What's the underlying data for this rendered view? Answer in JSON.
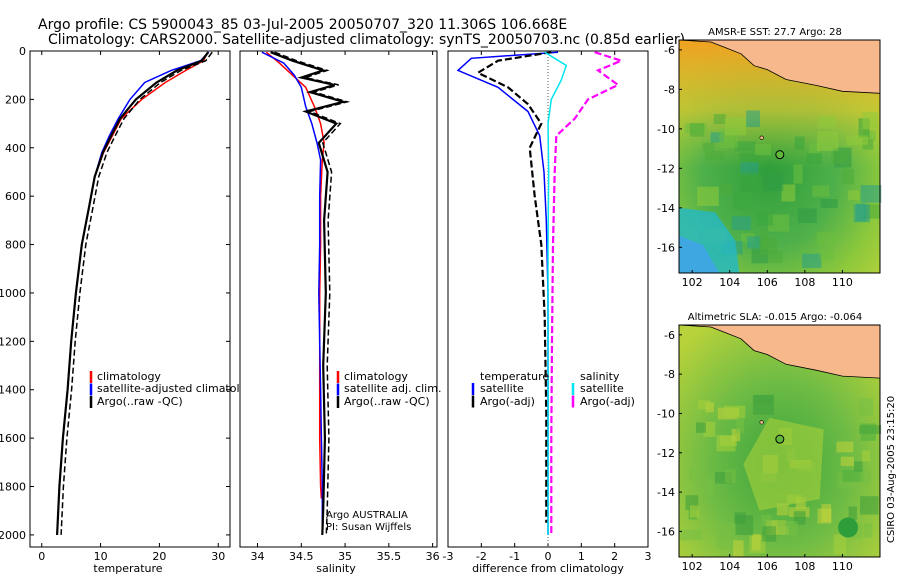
{
  "header": {
    "title_line1": "Argo profile: CS 5900043_85 03-Jul-2005 20050707_320 11.306S 106.668E",
    "title_line2": "Climatology: CARS2000. Satellite-adjusted climatology: synTS_20050703.nc (0.85d earlier)"
  },
  "side_stamp": "CSIRO 03-Aug-2005 23:15:20",
  "colors": {
    "climatology": "#ff0000",
    "satellite": "#0000ff",
    "argo": "#000000",
    "salinity_sat": "#00e5ee",
    "salinity_argo": "#ff00ff",
    "land": "#f7b98c",
    "float_marker": "#5fb83c"
  },
  "chart_data": [
    {
      "type": "line",
      "name": "temperature-profile",
      "xlabel": "temperature",
      "ylabel": "",
      "xlim": [
        -2,
        32
      ],
      "ylim": [
        0,
        2050
      ],
      "y_inverted": true,
      "xticks": [
        0,
        10,
        20,
        30
      ],
      "yticks": [
        0,
        200,
        400,
        600,
        800,
        1000,
        1200,
        1400,
        1600,
        1800,
        2000
      ],
      "legend": [
        "climatology",
        "satellite-adjusted climatology",
        "Argo(..raw -QC)"
      ],
      "legend_position": "center-right",
      "series": [
        {
          "name": "climatology",
          "color": "#ff0000",
          "x": [
            28.2,
            27.5,
            24.5,
            21.0,
            17.0,
            13.5,
            12.0,
            10.5,
            9.0,
            8.0,
            6.8,
            5.8,
            5.0,
            4.4,
            3.6,
            3.0,
            2.6
          ],
          "y": [
            5,
            40,
            80,
            130,
            200,
            280,
            350,
            420,
            520,
            650,
            800,
            1000,
            1200,
            1400,
            1600,
            1800,
            2000
          ]
        },
        {
          "name": "satellite-adjusted climatology",
          "color": "#0000ff",
          "x": [
            28.4,
            27.0,
            22.0,
            17.5,
            15.0,
            13.0,
            11.5,
            10.2,
            9.0,
            8.0,
            6.8,
            5.8,
            5.0,
            4.4,
            3.6,
            3.0,
            2.6
          ],
          "y": [
            5,
            40,
            80,
            130,
            200,
            280,
            350,
            420,
            520,
            650,
            800,
            1000,
            1200,
            1400,
            1600,
            1800,
            2000
          ]
        },
        {
          "name": "Argo(..raw -QC)",
          "color": "#000000",
          "x": [
            28.3,
            27.2,
            23.0,
            19.5,
            16.0,
            13.3,
            11.8,
            10.4,
            9.0,
            8.0,
            6.8,
            5.8,
            5.0,
            4.4,
            3.6,
            3.0,
            2.6
          ],
          "y": [
            5,
            40,
            80,
            130,
            200,
            280,
            350,
            420,
            520,
            650,
            800,
            1000,
            1200,
            1400,
            1600,
            1800,
            2000
          ]
        }
      ]
    },
    {
      "type": "line",
      "name": "salinity-profile",
      "xlabel": "salinity",
      "ylabel": "",
      "xlim": [
        33.8,
        36.05
      ],
      "ylim": [
        0,
        2050
      ],
      "y_inverted": true,
      "xticks": [
        34,
        34.5,
        35,
        35.5,
        36
      ],
      "xtick_labels": [
        "34",
        "34.5",
        "35",
        "35.5",
        "36"
      ],
      "legend": [
        "climatology",
        "satellite adj. clim.",
        "Argo(..raw -QC)"
      ],
      "legend_position": "center-right",
      "annotations": [
        "Argo AUSTRALIA",
        "PI: Susan Wijffels"
      ],
      "series": [
        {
          "name": "climatology",
          "color": "#ff0000",
          "x": [
            34.1,
            34.25,
            34.4,
            34.55,
            34.65,
            34.72,
            34.76,
            34.74,
            34.72,
            34.72,
            34.71,
            34.71,
            34.71,
            34.71,
            34.72,
            34.73
          ],
          "y": [
            5,
            50,
            100,
            150,
            230,
            300,
            380,
            450,
            600,
            800,
            1000,
            1200,
            1400,
            1600,
            1800,
            1850
          ]
        },
        {
          "name": "satellite adj. clim.",
          "color": "#0000ff",
          "x": [
            34.05,
            34.3,
            34.42,
            34.5,
            34.55,
            34.62,
            34.68,
            34.72,
            34.71,
            34.71,
            34.7,
            34.71,
            34.72,
            34.73,
            34.74,
            34.74
          ],
          "y": [
            5,
            50,
            100,
            150,
            230,
            300,
            380,
            450,
            600,
            800,
            1000,
            1200,
            1400,
            1600,
            1800,
            2000
          ]
        },
        {
          "name": "Argo(..raw -QC)",
          "color": "#000000",
          "x": [
            34.15,
            34.4,
            34.75,
            34.5,
            34.88,
            34.6,
            34.98,
            34.55,
            34.9,
            34.7,
            34.8,
            34.76,
            34.78,
            34.75,
            34.77,
            34.75,
            34.74
          ],
          "y": [
            5,
            40,
            80,
            110,
            140,
            170,
            210,
            250,
            300,
            380,
            500,
            700,
            1000,
            1300,
            1600,
            1900,
            2000
          ]
        }
      ]
    },
    {
      "type": "line",
      "name": "difference-from-climatology",
      "xlabel": "difference from climatology",
      "ylabel": "",
      "xlim": [
        -3,
        3
      ],
      "ylim": [
        0,
        2050
      ],
      "y_inverted": true,
      "xticks": [
        -3,
        -2,
        -1,
        0,
        1,
        2,
        3
      ],
      "legend_left": [
        "temperature",
        "satellite",
        "Argo(-adj)"
      ],
      "legend_right": [
        "salinity",
        "satellite",
        "Argo(-adj)"
      ],
      "legend_position": "center",
      "series": [
        {
          "name": "temperature satellite",
          "color": "#0000ff",
          "x": [
            0.3,
            -2.3,
            -2.7,
            -1.5,
            -0.6,
            -0.25,
            -0.12,
            -0.05,
            0.0,
            0.0,
            0.0,
            0.0
          ],
          "y": [
            5,
            30,
            80,
            150,
            250,
            350,
            500,
            700,
            1000,
            1400,
            1800,
            2000
          ]
        },
        {
          "name": "temperature Argo(-adj)",
          "color": "#000000",
          "x": [
            0.1,
            -1.5,
            -2.1,
            -1.2,
            -0.6,
            -0.2,
            -0.55,
            -0.4,
            -0.2,
            -0.1,
            -0.05,
            -0.05
          ],
          "y": [
            5,
            40,
            90,
            150,
            220,
            300,
            400,
            600,
            800,
            1100,
            1500,
            1950
          ]
        },
        {
          "name": "salinity satellite",
          "color": "#00e5ee",
          "x": [
            -0.1,
            0.55,
            0.4,
            0.1,
            0.0,
            0.02,
            0.0,
            0.0,
            0.0
          ],
          "y": [
            5,
            60,
            120,
            200,
            300,
            500,
            800,
            1300,
            2000
          ]
        },
        {
          "name": "salinity Argo(-adj)",
          "color": "#ff00ff",
          "x": [
            1.4,
            2.2,
            1.5,
            2.1,
            1.2,
            0.8,
            0.25,
            0.2,
            0.15,
            0.12,
            0.1,
            0.1
          ],
          "y": [
            5,
            40,
            80,
            140,
            200,
            280,
            350,
            500,
            800,
            1200,
            1600,
            2000
          ]
        }
      ]
    },
    {
      "type": "heatmap",
      "name": "amsre-sst-map",
      "title": "AMSR-E SST: 27.7 Argo: 28",
      "xlim": [
        101.3,
        112
      ],
      "ylim": [
        -17.3,
        -5.5
      ],
      "xticks": [
        102,
        104,
        106,
        108,
        110
      ],
      "yticks": [
        -6,
        -8,
        -10,
        -12,
        -14,
        -16
      ],
      "marker": {
        "lon": 106.668,
        "lat": -11.306
      }
    },
    {
      "type": "heatmap",
      "name": "altimetric-sla-map",
      "title": "Altimetric SLA: -0.015 Argo: -0.064",
      "xlim": [
        101.3,
        112
      ],
      "ylim": [
        -17.3,
        -5.5
      ],
      "xticks": [
        102,
        104,
        106,
        108,
        110
      ],
      "yticks": [
        -6,
        -8,
        -10,
        -12,
        -14,
        -16
      ],
      "marker": {
        "lon": 106.668,
        "lat": -11.306
      }
    }
  ]
}
